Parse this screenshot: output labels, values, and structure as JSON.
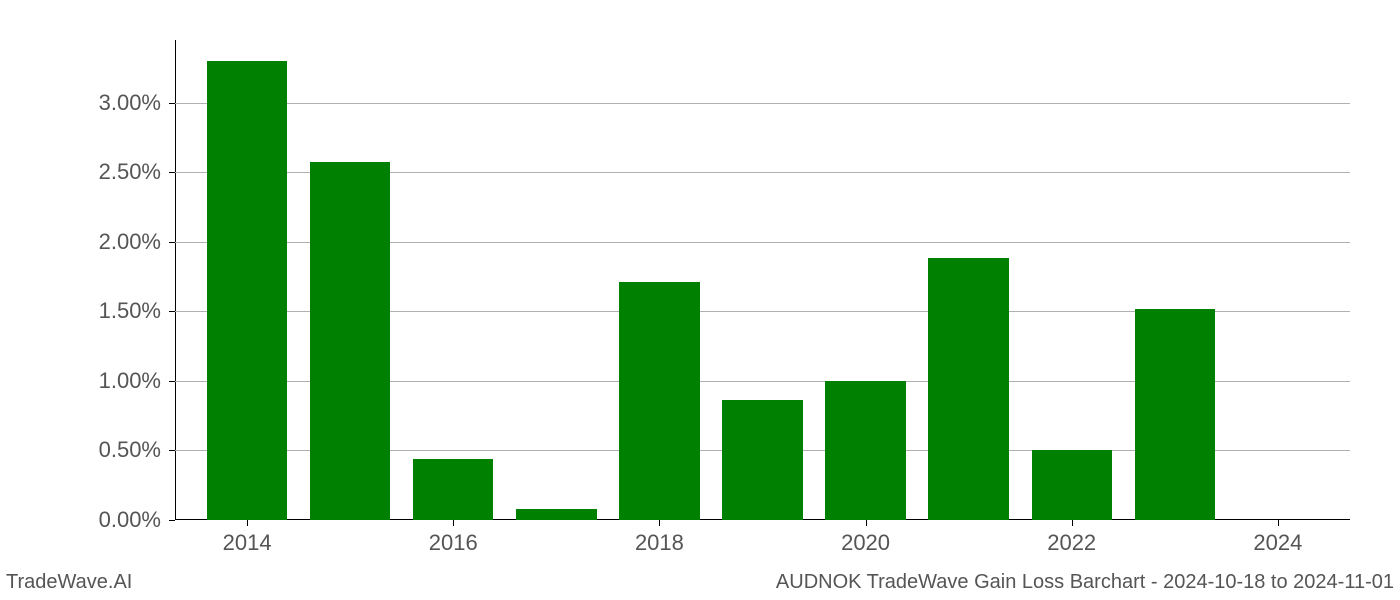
{
  "chart": {
    "type": "bar",
    "background_color": "#ffffff",
    "grid_color": "#b0b0b0",
    "spine_color": "#000000",
    "bar_color": "#008000",
    "tick_label_color": "#555555",
    "tick_label_fontsize": 22,
    "ylim": [
      0,
      3.45
    ],
    "yticks": [
      0.0,
      0.5,
      1.0,
      1.5,
      2.0,
      2.5,
      3.0
    ],
    "ytick_labels": [
      "0.00%",
      "0.50%",
      "1.00%",
      "1.50%",
      "2.00%",
      "2.50%",
      "3.00%"
    ],
    "xlim": [
      2013.3,
      2024.7
    ],
    "xticks": [
      2014,
      2016,
      2018,
      2020,
      2022,
      2024
    ],
    "xtick_labels": [
      "2014",
      "2016",
      "2018",
      "2020",
      "2022",
      "2024"
    ],
    "bar_width_years": 0.78,
    "bars": [
      {
        "x": 2014,
        "value": 3.3
      },
      {
        "x": 2015,
        "value": 2.57
      },
      {
        "x": 2016,
        "value": 0.44
      },
      {
        "x": 2017,
        "value": 0.08
      },
      {
        "x": 2018,
        "value": 1.71
      },
      {
        "x": 2019,
        "value": 0.86
      },
      {
        "x": 2020,
        "value": 1.0
      },
      {
        "x": 2021,
        "value": 1.88
      },
      {
        "x": 2022,
        "value": 0.5
      },
      {
        "x": 2023,
        "value": 1.52
      },
      {
        "x": 2024,
        "value": 0.0
      }
    ]
  },
  "footer": {
    "left": "TradeWave.AI",
    "right": "AUDNOK TradeWave Gain Loss Barchart - 2024-10-18 to 2024-11-01",
    "fontsize": 20,
    "color": "#555555"
  }
}
